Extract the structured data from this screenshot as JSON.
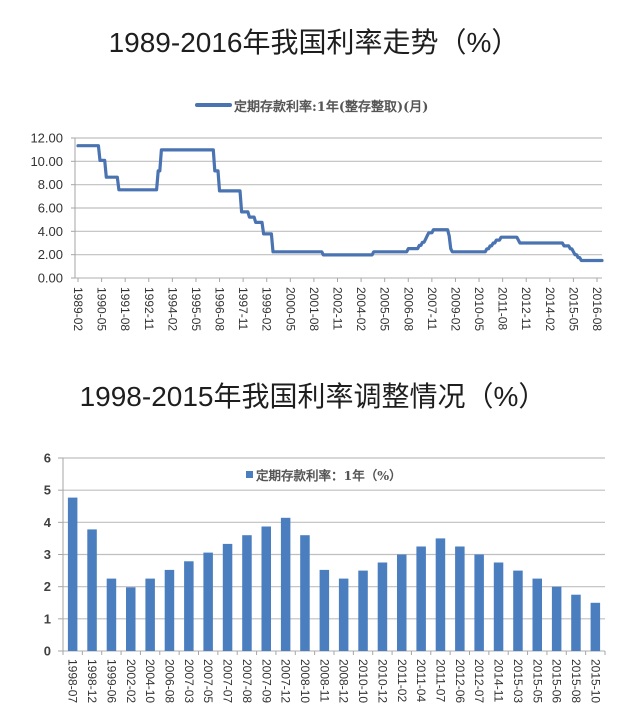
{
  "colors": {
    "line": "#4a73b1",
    "bar": "#4a7ebf",
    "grid": "#bfbfbf",
    "axis": "#a6a6a6",
    "tick_text": "#333333",
    "title_text": "#1e1e1e"
  },
  "chart_data": [
    {
      "type": "line",
      "title": "1989-2016年我国利率走势（%）",
      "xlabel": "",
      "ylabel": "",
      "legend": [
        "定期存款利率:1年(整存整取)(月)"
      ],
      "legend_position": "top",
      "grid": true,
      "ylim": [
        0,
        12
      ],
      "yticks": [
        "0.00",
        "2.00",
        "4.00",
        "6.00",
        "8.00",
        "10.00",
        "12.00"
      ],
      "x_tick_labels": [
        "1989-02",
        "1990-05",
        "1991-08",
        "1992-11",
        "1994-02",
        "1995-05",
        "1996-08",
        "1997-11",
        "1999-02",
        "2000-05",
        "2001-08",
        "2002-11",
        "2004-02",
        "2005-05",
        "2006-08",
        "2007-11",
        "2009-02",
        "2010-05",
        "2011-08",
        "2012-11",
        "2014-02",
        "2015-05",
        "2016-08"
      ],
      "series": [
        {
          "name": "定期存款利率:1年(整存整取)(月)",
          "interpolation": "step",
          "x": [
            "1989-02",
            "1990-04",
            "1990-08",
            "1991-04",
            "1993-05",
            "1993-07",
            "1996-05",
            "1996-08",
            "1997-10",
            "1998-03",
            "1998-07",
            "1998-12",
            "1999-06",
            "2002-02",
            "2004-10",
            "2006-08",
            "2007-03",
            "2007-05",
            "2007-07",
            "2007-08",
            "2007-09",
            "2007-12",
            "2008-10",
            "2008-11",
            "2008-12",
            "2010-10",
            "2010-12",
            "2011-02",
            "2011-04",
            "2011-07",
            "2012-06",
            "2012-07",
            "2014-11",
            "2015-03",
            "2015-05",
            "2015-06",
            "2015-08",
            "2015-10"
          ],
          "values": [
            11.34,
            10.08,
            8.64,
            7.56,
            9.18,
            10.98,
            9.18,
            7.47,
            5.67,
            5.22,
            4.77,
            3.78,
            2.25,
            1.98,
            2.25,
            2.52,
            2.79,
            3.06,
            3.33,
            3.6,
            3.87,
            4.14,
            3.6,
            2.52,
            2.25,
            2.5,
            2.75,
            3.0,
            3.25,
            3.5,
            3.25,
            3.0,
            2.75,
            2.5,
            2.25,
            2.0,
            1.75,
            1.5
          ]
        }
      ]
    },
    {
      "type": "bar",
      "title": "1998-2015年我国利率调整情况（%）",
      "xlabel": "",
      "ylabel": "",
      "legend": [
        "定期存款利率：1年（%）"
      ],
      "legend_position": "top",
      "grid": true,
      "ylim": [
        0,
        6
      ],
      "yticks": [
        "0",
        "1",
        "2",
        "3",
        "4",
        "5",
        "6"
      ],
      "categories": [
        "1998-07",
        "1998-12",
        "1999-06",
        "2002-02",
        "2004-10",
        "2006-08",
        "2007-03",
        "2007-05",
        "2007-07",
        "2007-08",
        "2007-09",
        "2007-12",
        "2008-10",
        "2008-11",
        "2008-12",
        "2010-10",
        "2010-12",
        "2011-02",
        "2011-04",
        "2011-07",
        "2012-06",
        "2012-07",
        "2014-11",
        "2015-03",
        "2015-05",
        "2015-06",
        "2015-08",
        "2015-10"
      ],
      "values": [
        4.77,
        3.78,
        2.25,
        1.98,
        2.25,
        2.52,
        2.79,
        3.06,
        3.33,
        3.6,
        3.87,
        4.14,
        3.6,
        2.52,
        2.25,
        2.5,
        2.75,
        3.0,
        3.25,
        3.5,
        3.25,
        3.0,
        2.75,
        2.5,
        2.25,
        2.0,
        1.75,
        1.5
      ]
    }
  ]
}
